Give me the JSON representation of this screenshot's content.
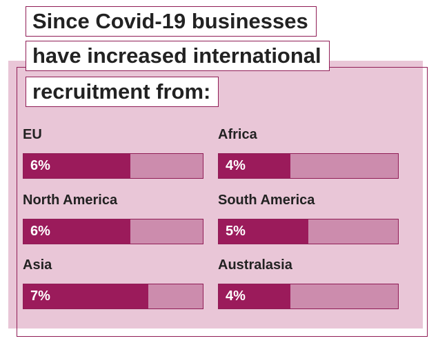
{
  "title_lines": [
    "Since Covid-19 businesses",
    "have increased international",
    "recruitment from:"
  ],
  "colors": {
    "panel_background": "#e9c6d7",
    "outline": "#8f1c55",
    "bar_fill": "#9b1b5b",
    "bar_track": "#cc8cad"
  },
  "chart_data": {
    "type": "bar",
    "title": "Since Covid-19 businesses have increased international recruitment from:",
    "categories": [
      "EU",
      "Africa",
      "North America",
      "South America",
      "Asia",
      "Australasia"
    ],
    "values": [
      6,
      4,
      6,
      5,
      7,
      4
    ],
    "value_labels": [
      "6%",
      "4%",
      "6%",
      "5%",
      "7%",
      "4%"
    ],
    "unit": "%",
    "ylim": [
      0,
      10
    ]
  }
}
